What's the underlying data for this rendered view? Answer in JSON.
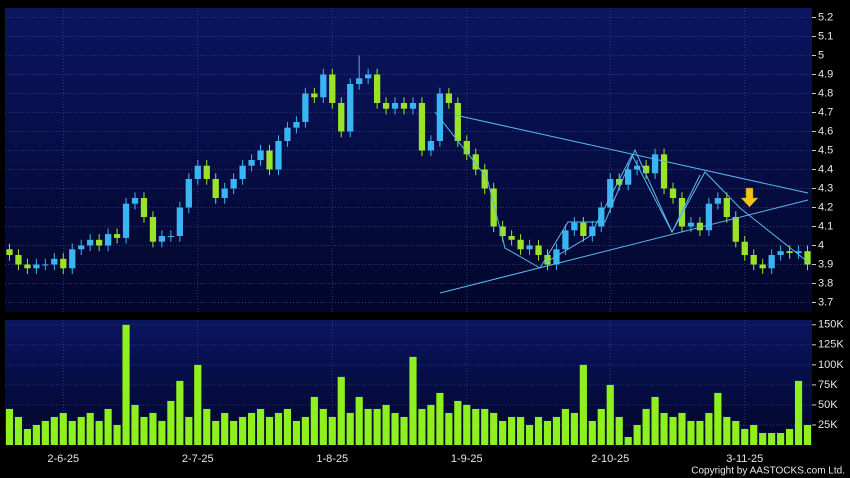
{
  "chart_data": {
    "type": "candlestick",
    "categories": [
      null,
      null,
      null,
      null,
      null,
      null,
      "2-6-25",
      null,
      null,
      null,
      null,
      null,
      null,
      null,
      null,
      null,
      null,
      null,
      null,
      null,
      null,
      "2-7-25",
      null,
      null,
      null,
      null,
      null,
      null,
      null,
      null,
      null,
      null,
      null,
      null,
      null,
      null,
      "1-8-25",
      null,
      null,
      null,
      null,
      null,
      null,
      null,
      null,
      null,
      null,
      null,
      null,
      null,
      null,
      "1-9-25",
      null,
      null,
      null,
      null,
      null,
      null,
      null,
      null,
      null,
      null,
      null,
      null,
      null,
      null,
      null,
      "2-10-25",
      null,
      null,
      null,
      null,
      null,
      null,
      null,
      null,
      null,
      null,
      null,
      null,
      null,
      null,
      "3-11-25",
      null,
      null,
      null,
      null,
      null,
      null,
      null
    ],
    "open": [
      3.98,
      3.95,
      3.9,
      3.88,
      3.9,
      3.9,
      3.93,
      3.88,
      3.98,
      4.0,
      4.03,
      4.0,
      4.06,
      4.04,
      4.22,
      4.25,
      4.15,
      4.02,
      4.05,
      4.05,
      4.2,
      4.35,
      4.42,
      4.35,
      4.25,
      4.3,
      4.35,
      4.42,
      4.45,
      4.5,
      4.4,
      4.55,
      4.62,
      4.65,
      4.8,
      4.78,
      4.9,
      4.75,
      4.6,
      4.85,
      4.88,
      4.9,
      4.75,
      4.72,
      4.75,
      4.72,
      4.75,
      4.5,
      4.55,
      4.8,
      4.75,
      4.55,
      4.48,
      4.4,
      4.3,
      4.1,
      4.05,
      4.03,
      3.98,
      4.0,
      3.95,
      3.9,
      3.98,
      4.08,
      4.12,
      4.05,
      4.1,
      4.2,
      4.35,
      4.32,
      4.4,
      4.42,
      4.38,
      4.48,
      4.3,
      4.25,
      4.1,
      4.12,
      4.08,
      4.22,
      4.25,
      4.15,
      4.02,
      3.95,
      3.9,
      3.88,
      3.95,
      3.97,
      3.96,
      3.97
    ],
    "high": [
      4.01,
      3.98,
      3.93,
      3.93,
      3.93,
      3.96,
      3.96,
      4.01,
      4.03,
      4.06,
      4.06,
      4.09,
      4.09,
      4.25,
      4.28,
      4.28,
      4.18,
      4.08,
      4.08,
      4.23,
      4.38,
      4.45,
      4.45,
      4.38,
      4.33,
      4.38,
      4.45,
      4.48,
      4.53,
      4.53,
      4.58,
      4.65,
      4.68,
      4.83,
      4.83,
      4.93,
      4.93,
      4.78,
      4.88,
      5.0,
      4.93,
      4.93,
      4.78,
      4.78,
      4.78,
      4.78,
      4.78,
      4.58,
      4.83,
      4.83,
      4.78,
      4.58,
      4.51,
      4.43,
      4.33,
      4.13,
      4.08,
      4.06,
      4.03,
      4.03,
      3.98,
      4.01,
      4.11,
      4.15,
      4.15,
      4.13,
      4.23,
      4.38,
      4.38,
      4.43,
      4.45,
      4.45,
      4.51,
      4.51,
      4.33,
      4.28,
      4.15,
      4.15,
      4.25,
      4.28,
      4.28,
      4.18,
      4.05,
      3.98,
      3.93,
      3.98,
      4.0,
      4.0,
      4.0,
      4.0
    ],
    "low": [
      3.92,
      3.87,
      3.85,
      3.85,
      3.87,
      3.87,
      3.85,
      3.85,
      3.95,
      3.97,
      3.97,
      3.97,
      4.01,
      4.01,
      4.19,
      4.12,
      3.99,
      3.99,
      4.02,
      4.02,
      4.17,
      4.32,
      4.32,
      4.22,
      4.22,
      4.27,
      4.32,
      4.39,
      4.42,
      4.37,
      4.37,
      4.52,
      4.59,
      4.62,
      4.75,
      4.75,
      4.72,
      4.57,
      4.57,
      4.82,
      4.85,
      4.72,
      4.69,
      4.69,
      4.69,
      4.69,
      4.47,
      4.47,
      4.52,
      4.72,
      4.52,
      4.45,
      4.37,
      4.27,
      4.07,
      4.02,
      4.0,
      3.95,
      3.95,
      3.92,
      3.87,
      3.87,
      3.95,
      4.05,
      4.02,
      4.02,
      4.07,
      4.17,
      4.29,
      4.29,
      4.37,
      4.35,
      4.35,
      4.27,
      4.22,
      4.07,
      4.07,
      4.05,
      4.05,
      4.19,
      4.12,
      3.99,
      3.92,
      3.87,
      3.85,
      3.85,
      3.92,
      3.93,
      3.93,
      3.87
    ],
    "close": [
      3.95,
      3.9,
      3.88,
      3.9,
      3.9,
      3.93,
      3.88,
      3.98,
      4.0,
      4.03,
      4.0,
      4.06,
      4.04,
      4.22,
      4.25,
      4.15,
      4.02,
      4.05,
      4.05,
      4.2,
      4.35,
      4.42,
      4.35,
      4.25,
      4.3,
      4.35,
      4.42,
      4.45,
      4.5,
      4.4,
      4.55,
      4.62,
      4.65,
      4.8,
      4.78,
      4.9,
      4.75,
      4.6,
      4.85,
      4.88,
      4.9,
      4.75,
      4.72,
      4.75,
      4.72,
      4.75,
      4.5,
      4.55,
      4.8,
      4.75,
      4.55,
      4.48,
      4.4,
      4.3,
      4.1,
      4.05,
      4.03,
      3.98,
      4.0,
      3.95,
      3.9,
      3.98,
      4.08,
      4.12,
      4.05,
      4.1,
      4.2,
      4.35,
      4.32,
      4.4,
      4.42,
      4.38,
      4.48,
      4.3,
      4.25,
      4.1,
      4.12,
      4.08,
      4.22,
      4.25,
      4.15,
      4.02,
      3.95,
      3.9,
      3.88,
      3.95,
      3.97,
      3.96,
      3.97,
      3.9
    ],
    "volume": [
      45000,
      35000,
      20000,
      25000,
      30000,
      35000,
      40000,
      30000,
      35000,
      40000,
      30000,
      45000,
      25000,
      150000,
      50000,
      35000,
      40000,
      30000,
      55000,
      80000,
      35000,
      100000,
      45000,
      30000,
      40000,
      30000,
      35000,
      40000,
      45000,
      35000,
      40000,
      45000,
      30000,
      35000,
      60000,
      45000,
      35000,
      85000,
      40000,
      60000,
      45000,
      45000,
      50000,
      40000,
      35000,
      110000,
      45000,
      50000,
      65000,
      40000,
      55000,
      50000,
      45000,
      45000,
      40000,
      30000,
      35000,
      35000,
      25000,
      35000,
      30000,
      35000,
      45000,
      40000,
      100000,
      30000,
      45000,
      75000,
      35000,
      10000,
      25000,
      45000,
      60000,
      40000,
      35000,
      40000,
      30000,
      30000,
      40000,
      65000,
      35000,
      30000,
      20000,
      25000,
      15000,
      15000,
      15000,
      20000,
      80000,
      25000
    ],
    "up_color": "#3ab4f2",
    "down_color": "#9be327",
    "volume_color": "#8ef01c",
    "ylim": [
      3.65,
      5.25
    ],
    "yticks": [
      3.7,
      3.8,
      3.9,
      4,
      4.1,
      4.2,
      4.3,
      4.4,
      4.5,
      4.6,
      4.7,
      4.8,
      4.9,
      5,
      5.1,
      5.2
    ],
    "volume_ylim": [
      0,
      156000
    ],
    "volume_yticks": [
      {
        "value": 25000,
        "label": "25K"
      },
      {
        "value": 50000,
        "label": "50K"
      },
      {
        "value": 75000,
        "label": "75K"
      },
      {
        "value": 100000,
        "label": "100K"
      },
      {
        "value": 125000,
        "label": "125K"
      },
      {
        "value": 150000,
        "label": "150K"
      }
    ],
    "grid": true,
    "credit": "Copyright by AASTOCKS.com Ltd."
  }
}
